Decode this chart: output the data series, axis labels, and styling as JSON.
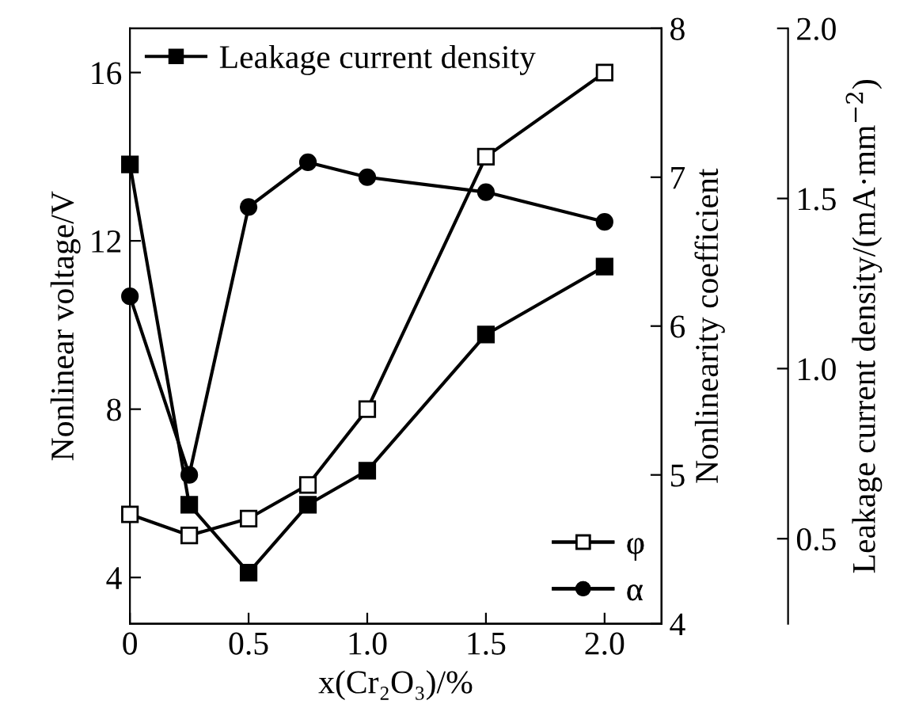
{
  "chart_data": {
    "type": "line",
    "xlabel": "x(Cr₂O₃)/%",
    "ylabel": "Nonlinear voltage/V",
    "y2label": "Nonlinearity coefficient",
    "y3label": "Leakage current density/(mA·mm$^{−2}$)",
    "x": [
      0,
      0.25,
      0.5,
      0.75,
      1.0,
      1.5,
      2.0
    ],
    "xlim": [
      0,
      2.24
    ],
    "xticks": [
      0,
      {
        "value": 0.5,
        "label": "0.5"
      },
      {
        "value": 1.0,
        "label": "1.0"
      },
      {
        "value": 1.5,
        "label": "1.5"
      },
      {
        "value": 2.0,
        "label": "2.0"
      }
    ],
    "ylim": [
      2.9,
      17.05
    ],
    "yticks": [
      4,
      8,
      12,
      16
    ],
    "y2lim": [
      4,
      8
    ],
    "y2ticks": [
      4,
      5,
      6,
      7,
      8
    ],
    "y3lim": [
      0.25,
      2.0
    ],
    "y3ticks": [
      {
        "value": 0.5,
        "label": "0.5"
      },
      {
        "value": 1.0,
        "label": "1.0"
      },
      {
        "value": 1.5,
        "label": "1.5"
      },
      {
        "value": 2.0,
        "label": "2.0"
      }
    ],
    "grid": false,
    "line_style": "solid",
    "legend": [
      "top left",
      "bottom right"
    ],
    "series": [
      {
        "name": "Leakage current density",
        "axis": "y3",
        "color": "#000000",
        "marker": "square",
        "values": [
          1.6,
          0.6,
          0.4,
          0.6,
          0.7,
          1.1,
          1.3
        ]
      },
      {
        "name": "φ",
        "axis": "y",
        "color": "#000000",
        "marker": "square",
        "values": [
          5.5,
          5.0,
          5.4,
          6.2,
          8.0,
          14.0,
          16.0
        ]
      },
      {
        "name": "α",
        "axis": "y2",
        "color": "#000000",
        "marker": "circle",
        "values": [
          6.2,
          5.0,
          6.8,
          7.1,
          7.0,
          6.9,
          6.7
        ]
      }
    ]
  }
}
